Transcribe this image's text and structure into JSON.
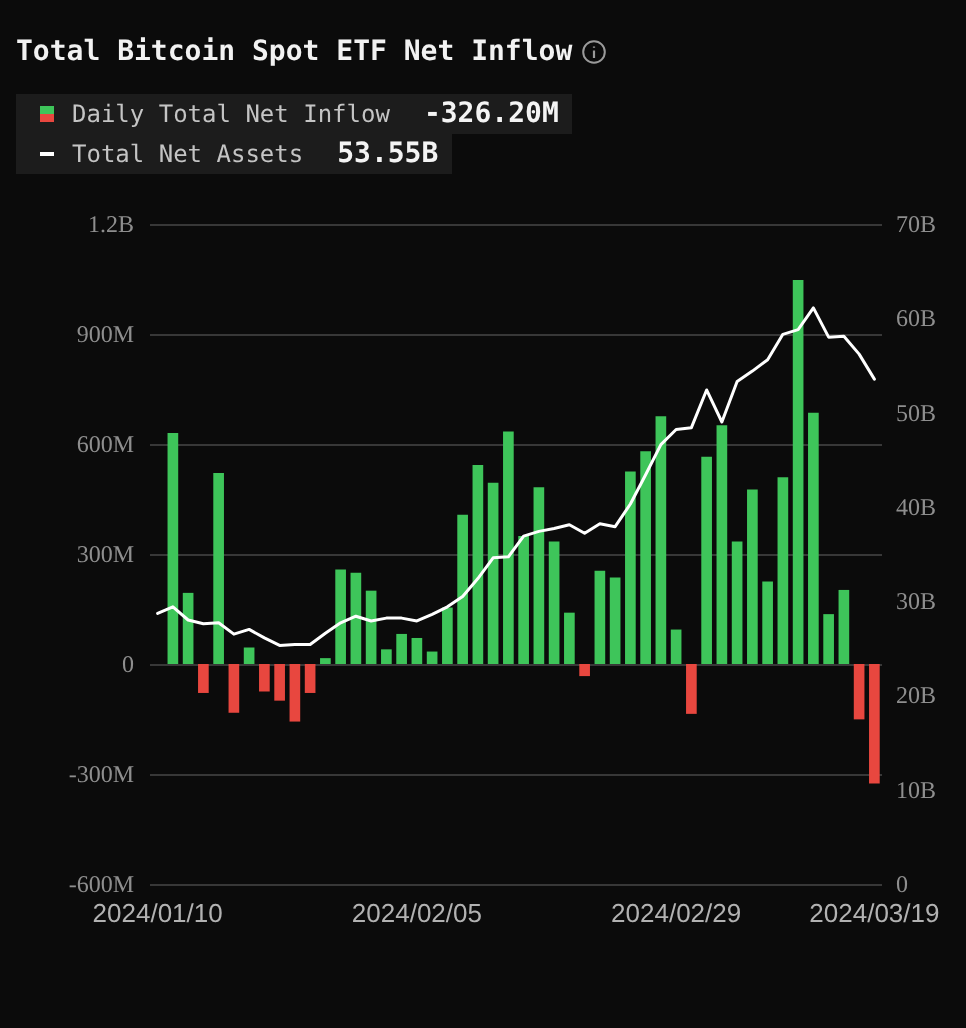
{
  "chart_data": {
    "type": "bar",
    "title": "Total Bitcoin Spot ETF Net Inflow",
    "categories": [
      "2024/01/10",
      null,
      null,
      null,
      null,
      null,
      null,
      null,
      null,
      null,
      null,
      null,
      null,
      null,
      null,
      null,
      null,
      "2024/02/05",
      null,
      null,
      null,
      null,
      null,
      null,
      null,
      null,
      null,
      null,
      null,
      null,
      null,
      null,
      null,
      null,
      "2024/02/29",
      null,
      null,
      null,
      null,
      null,
      null,
      null,
      null,
      null,
      null,
      null,
      null,
      "2024/03/19"
    ],
    "series": [
      {
        "name": "Daily Total Net Inflow",
        "values": [
          null,
          630000000,
          194000000,
          -79000000,
          521000000,
          -133000000,
          45000000,
          -75000000,
          -100000000,
          -157000000,
          -79000000,
          16000000,
          258000000,
          249000000,
          200000000,
          40000000,
          82000000,
          71000000,
          34000000,
          154000000,
          407000000,
          543000000,
          494000000,
          634000000,
          349000000,
          482000000,
          334000000,
          140000000,
          -33000000,
          254000000,
          236000000,
          525000000,
          580000000,
          676000000,
          94000000,
          -136000000,
          565000000,
          651000000,
          334000000,
          476000000,
          225000000,
          509000000,
          1047000000,
          685000000,
          136000000,
          202000000,
          -151000000,
          -326200000
        ],
        "colors": [
          null,
          "#3ec55a",
          "#3ec55a",
          "#e8473f",
          "#3ec55a",
          "#e8473f",
          "#3ec55a",
          "#e8473f",
          "#e8473f",
          "#e8473f",
          "#e8473f",
          "#3ec55a",
          "#3ec55a",
          "#3ec55a",
          "#3ec55a",
          "#3ec55a",
          "#3ec55a",
          "#3ec55a",
          "#3ec55a",
          "#3ec55a",
          "#3ec55a",
          "#3ec55a",
          "#3ec55a",
          "#3ec55a",
          "#3ec55a",
          "#3ec55a",
          "#3ec55a",
          "#3ec55a",
          "#e8473f",
          "#3ec55a",
          "#3ec55a",
          "#3ec55a",
          "#3ec55a",
          "#3ec55a",
          "#3ec55a",
          "#e8473f",
          "#3ec55a",
          "#3ec55a",
          "#3ec55a",
          "#3ec55a",
          "#3ec55a",
          "#3ec55a",
          "#3ec55a",
          "#3ec55a",
          "#3ec55a",
          "#3ec55a",
          "#e8473f",
          "#e8473f"
        ]
      },
      {
        "name": "Total Net Assets",
        "type": "line",
        "axis": "y2",
        "color": "#ffffff",
        "values": [
          28700000000,
          29400000000,
          28000000000,
          27600000000,
          27700000000,
          26500000000,
          27000000000,
          26100000000,
          25300000000,
          25400000000,
          25400000000,
          26600000000,
          27700000000,
          28400000000,
          27900000000,
          28200000000,
          28200000000,
          27900000000,
          28600000000,
          29400000000,
          30500000000,
          32400000000,
          34600000000,
          34700000000,
          36900000000,
          37400000000,
          37700000000,
          38100000000,
          37200000000,
          38200000000,
          37900000000,
          40300000000,
          43400000000,
          46600000000,
          48200000000,
          48400000000,
          52400000000,
          49000000000,
          53300000000,
          54400000000,
          55600000000,
          58300000000,
          58800000000,
          61100000000,
          58000000000,
          58100000000,
          56200000000,
          53550000000
        ]
      }
    ],
    "ylim": [
      -600000000,
      1200000000
    ],
    "yticks": [
      {
        "value": -600000000,
        "label": "-600M"
      },
      {
        "value": -300000000,
        "label": "-300M"
      },
      0,
      {
        "value": 300000000,
        "label": "300M"
      },
      {
        "value": 600000000,
        "label": "600M"
      },
      {
        "value": 900000000,
        "label": "900M"
      },
      {
        "value": 1200000000,
        "label": "1.2B"
      }
    ],
    "y2lim": [
      0,
      70000000000
    ],
    "y2ticks": [
      0,
      {
        "value": 10000000000,
        "label": "10B"
      },
      {
        "value": 20000000000,
        "label": "20B"
      },
      {
        "value": 30000000000,
        "label": "30B"
      },
      {
        "value": 40000000000,
        "label": "40B"
      },
      {
        "value": 50000000000,
        "label": "50B"
      },
      {
        "value": 60000000000,
        "label": "60B"
      },
      {
        "value": 70000000000,
        "label": "70B"
      }
    ],
    "annotations": [
      "-326.20M",
      "53.55B"
    ],
    "grid": "y",
    "legend": "top left",
    "marker": "none"
  }
}
